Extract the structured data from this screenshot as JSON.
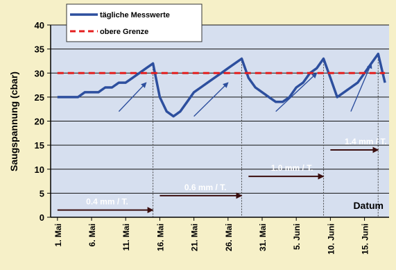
{
  "chart_data": {
    "type": "line",
    "xlabel": "Datum",
    "ylabel": "Saugspannung (cbar)",
    "ylim": [
      0,
      40
    ],
    "y_ticks": [
      0,
      5,
      10,
      15,
      20,
      25,
      30,
      35,
      40
    ],
    "x_ticks": [
      "1. Mai",
      "6. Mai",
      "11. Mai",
      "16. Mai",
      "21. Mai",
      "26. Mai",
      "31. Mai",
      "5. Juni",
      "10. Juni",
      "15. Juni"
    ],
    "x_tick_days": [
      1,
      6,
      11,
      16,
      21,
      26,
      31,
      36,
      41,
      46
    ],
    "grid": "horizontal",
    "legend_position": "top-left",
    "background_color": "#f6f0c8",
    "plot_color": "#d6dfef",
    "series": [
      {
        "name": "tägliche Messwerte",
        "color": "#2d4f9e",
        "style": "solid",
        "day": [
          1,
          2,
          3,
          4,
          5,
          6,
          7,
          8,
          9,
          10,
          11,
          12,
          13,
          14,
          15,
          16,
          17,
          18,
          19,
          20,
          21,
          22,
          23,
          24,
          25,
          26,
          27,
          28,
          29,
          30,
          31,
          32,
          33,
          34,
          35,
          36,
          37,
          38,
          39,
          40,
          41,
          42,
          43,
          44,
          45,
          46,
          47,
          48,
          49
        ],
        "values": [
          25,
          25,
          25,
          25,
          26,
          26,
          26,
          27,
          27,
          28,
          28,
          29,
          30,
          31,
          32,
          25,
          22,
          21,
          22,
          24,
          26,
          27,
          28,
          29,
          30,
          31,
          32,
          33,
          29,
          27,
          26,
          25,
          24,
          24,
          25,
          27,
          28,
          30,
          31,
          33,
          29,
          25,
          26,
          27,
          28,
          30,
          32,
          34,
          28
        ]
      },
      {
        "name": "obere Grenze",
        "color": "#e41e1e",
        "style": "dashed",
        "day": [
          1,
          49
        ],
        "values": [
          30,
          30
        ]
      }
    ],
    "period_markers": [
      {
        "day": 15,
        "top": 32
      },
      {
        "day": 28,
        "top": 33
      },
      {
        "day": 40,
        "top": 33
      },
      {
        "day": 48,
        "top": 34
      }
    ],
    "rate_labels": [
      {
        "text": "0.4 mm / T.",
        "from_day": 1,
        "to_day": 15,
        "y": 1.5
      },
      {
        "text": "0.6 mm / T.",
        "from_day": 16,
        "to_day": 28,
        "y": 4.5
      },
      {
        "text": "1.0 mm / T.",
        "from_day": 29,
        "to_day": 40,
        "y": 8.5
      },
      {
        "text": "1.4 mm / T.",
        "from_day": 41,
        "to_day": 48,
        "y": 14
      }
    ],
    "trend_arrows": [
      {
        "from": [
          10,
          22
        ],
        "to": [
          14,
          28
        ]
      },
      {
        "from": [
          21,
          21
        ],
        "to": [
          26,
          28
        ]
      },
      {
        "from": [
          33,
          22
        ],
        "to": [
          39,
          30
        ]
      },
      {
        "from": [
          44,
          22
        ],
        "to": [
          47,
          32
        ]
      }
    ]
  }
}
